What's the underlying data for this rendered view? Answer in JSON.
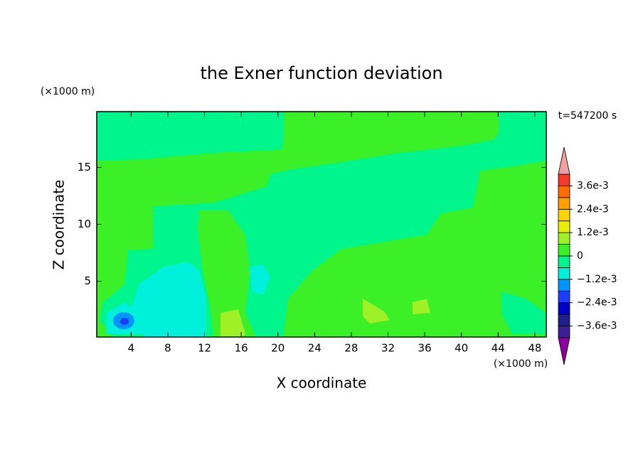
{
  "chart_data": {
    "type": "contour",
    "title": "the Exner function deviation",
    "x_label": "X coordinate",
    "y_label": "Z coordinate",
    "x_unit": "(×1000 m)",
    "y_unit": "(×1000 m)",
    "time_label": "t=547200 s",
    "xlim": [
      0.25,
      49.25
    ],
    "ylim": [
      0.1,
      19.9
    ],
    "xticks": [
      4,
      8,
      12,
      16,
      20,
      24,
      28,
      32,
      36,
      40,
      44,
      48
    ],
    "yticks": [
      5,
      10,
      15
    ],
    "colorbar": {
      "bounds": [
        -0.0042,
        -0.0036,
        -0.003,
        -0.0024,
        -0.0018,
        -0.0012,
        -0.0006,
        0,
        0.0006,
        0.0012,
        0.0018,
        0.0024,
        0.003,
        0.0036,
        0.0042
      ],
      "colors": [
        "#3c1e96",
        "#1e1e8c",
        "#0000c8",
        "#1e3cff",
        "#0096ff",
        "#00f0dc",
        "#00f58c",
        "#3cf028",
        "#a0f028",
        "#e6f000",
        "#ffd200",
        "#ffa000",
        "#ff6e00",
        "#f03c28"
      ],
      "under_color": "#8c00a0",
      "over_color": "#f0a0a0",
      "ticks": [
        {
          "value": 0.0036,
          "label": "3.6e-3"
        },
        {
          "value": 0.0024,
          "label": "2.4e-3"
        },
        {
          "value": 0.0012,
          "label": "1.2e-3"
        },
        0,
        {
          "value": -0.0012,
          "label": "−1.2e-3"
        },
        {
          "value": -0.0024,
          "label": "−2.4e-3"
        },
        {
          "value": -0.0036,
          "label": "−3.6e-3"
        }
      ]
    }
  }
}
